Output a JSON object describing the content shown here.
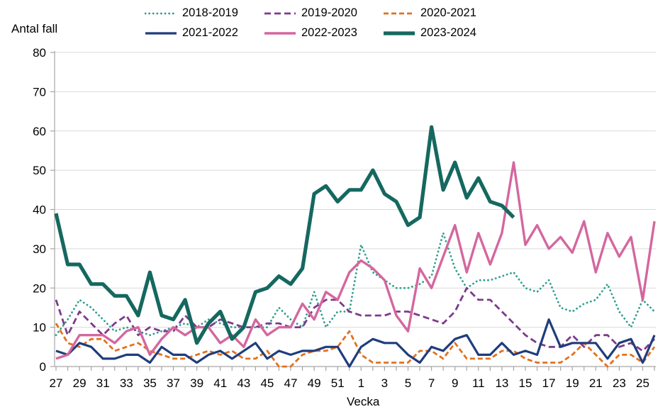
{
  "chart_data": {
    "type": "line",
    "title": "Antal fall",
    "xlabel": "Vecka",
    "ylabel": "",
    "ylim": [
      0,
      80
    ],
    "ytick_step": 10,
    "grid": "horizontal",
    "legend_position": "top",
    "x_label_every": 2,
    "x_categories": [
      "27",
      "28",
      "29",
      "30",
      "31",
      "32",
      "33",
      "34",
      "35",
      "36",
      "37",
      "38",
      "39",
      "40",
      "41",
      "42",
      "43",
      "44",
      "45",
      "46",
      "47",
      "48",
      "49",
      "50",
      "51",
      "52",
      "1",
      "2",
      "3",
      "4",
      "5",
      "6",
      "7",
      "8",
      "9",
      "10",
      "11",
      "12",
      "13",
      "14",
      "15",
      "16",
      "17",
      "18",
      "19",
      "20",
      "21",
      "22",
      "23",
      "24",
      "25",
      "26"
    ],
    "axis_color": "#a6a6a6",
    "gridline_color": "#d9d9d9",
    "series": [
      {
        "name": "2018-2019",
        "color": "#2f9e8e",
        "line_style": "dotted",
        "dash": "0.1 5.5",
        "width": 2.8,
        "values": [
          8,
          12,
          17,
          15,
          12,
          9,
          10,
          9,
          8,
          9,
          10,
          11,
          10,
          12,
          11,
          10,
          10,
          10,
          10,
          15,
          12,
          10,
          19,
          10,
          14,
          14,
          31,
          24,
          22,
          20,
          20,
          21,
          23,
          34,
          25,
          20,
          22,
          22,
          23,
          24,
          20,
          19,
          22,
          15,
          14,
          16,
          17,
          21,
          14,
          10,
          17,
          14
        ]
      },
      {
        "name": "2019-2020",
        "color": "#7c3a8d",
        "line_style": "dashed",
        "dash": "9 5",
        "width": 2.8,
        "values": [
          17,
          8,
          14,
          11,
          8,
          11,
          13,
          8,
          10,
          9,
          9,
          13,
          10,
          10,
          12,
          11,
          10,
          10,
          11,
          11,
          10,
          10,
          15,
          17,
          17,
          14,
          13,
          13,
          13,
          14,
          14,
          13,
          12,
          11,
          14,
          20,
          17,
          17,
          14,
          11,
          8,
          6,
          5,
          5,
          8,
          5,
          8,
          8,
          5,
          6,
          4,
          7
        ]
      },
      {
        "name": "2020-2021",
        "color": "#e2711d",
        "line_style": "dashed",
        "dash": "7 4",
        "width": 2.8,
        "values": [
          11,
          6,
          5,
          7,
          7,
          4,
          5,
          6,
          4,
          3,
          2,
          2,
          3,
          4,
          3,
          4,
          2,
          2,
          4,
          0,
          0,
          3,
          4,
          4,
          5,
          9,
          3,
          1,
          1,
          1,
          1,
          4,
          4,
          2,
          6,
          2,
          2,
          2,
          4,
          4,
          2,
          1,
          1,
          1,
          3,
          6,
          3,
          0,
          3,
          3,
          1,
          5
        ]
      },
      {
        "name": "2021-2022",
        "color": "#1f3d7d",
        "line_style": "solid",
        "dash": "",
        "width": 3.2,
        "values": [
          4,
          3,
          6,
          5,
          2,
          2,
          3,
          3,
          1,
          5,
          3,
          3,
          1,
          3,
          4,
          2,
          4,
          6,
          2,
          4,
          3,
          4,
          4,
          5,
          5,
          0,
          5,
          7,
          6,
          6,
          3,
          1,
          5,
          4,
          7,
          8,
          3,
          3,
          6,
          3,
          4,
          3,
          12,
          5,
          6,
          6,
          6,
          2,
          6,
          7,
          1,
          8
        ]
      },
      {
        "name": "2022-2023",
        "color": "#d4679f",
        "line_style": "solid",
        "dash": "",
        "width": 3.4,
        "values": [
          2,
          3,
          8,
          8,
          8,
          6,
          9,
          10,
          3,
          7,
          10,
          8,
          10,
          10,
          6,
          8,
          5,
          12,
          8,
          10,
          10,
          16,
          12,
          19,
          17,
          24,
          27,
          25,
          22,
          13,
          9,
          25,
          20,
          28,
          36,
          24,
          34,
          26,
          34,
          52,
          31,
          36,
          30,
          33,
          29,
          37,
          24,
          34,
          28,
          33,
          17,
          37
        ]
      },
      {
        "name": "2023-2024",
        "color": "#15685f",
        "line_style": "solid",
        "dash": "",
        "width": 5.2,
        "values": [
          39,
          26,
          26,
          21,
          21,
          18,
          18,
          13,
          24,
          13,
          12,
          17,
          6,
          11,
          14,
          7,
          10,
          19,
          20,
          23,
          21,
          25,
          44,
          46,
          42,
          45,
          45,
          50,
          44,
          42,
          36,
          38,
          61,
          45,
          52,
          43,
          48,
          42,
          41,
          38,
          null,
          null,
          null,
          null,
          null,
          null,
          null,
          null,
          null,
          null,
          null,
          null
        ]
      }
    ]
  }
}
